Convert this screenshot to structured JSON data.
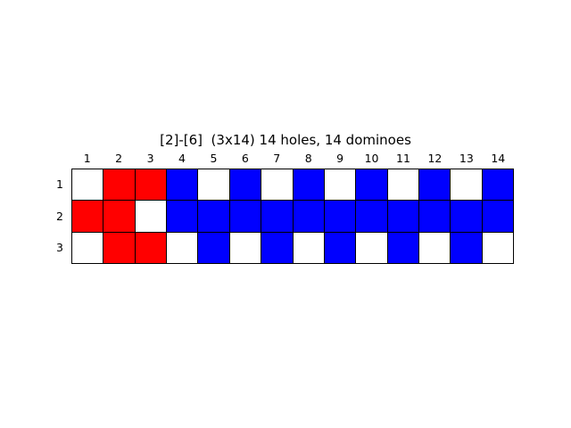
{
  "title": "[2]-[6]  (3x14) 14 holes, 14 dominoes",
  "columns": [
    "1",
    "2",
    "3",
    "4",
    "5",
    "6",
    "7",
    "8",
    "9",
    "10",
    "11",
    "12",
    "13",
    "14"
  ],
  "rows": [
    "1",
    "2",
    "3"
  ],
  "colors": {
    "W": "#ffffff",
    "R": "#ff0000",
    "B": "#0000ff"
  },
  "cells": [
    [
      "W",
      "R",
      "R",
      "B",
      "W",
      "B",
      "W",
      "B",
      "W",
      "B",
      "W",
      "B",
      "W",
      "B"
    ],
    [
      "R",
      "R",
      "W",
      "B",
      "B",
      "B",
      "B",
      "B",
      "B",
      "B",
      "B",
      "B",
      "B",
      "B"
    ],
    [
      "W",
      "R",
      "R",
      "W",
      "B",
      "W",
      "B",
      "W",
      "B",
      "W",
      "B",
      "W",
      "B",
      "W"
    ]
  ]
}
